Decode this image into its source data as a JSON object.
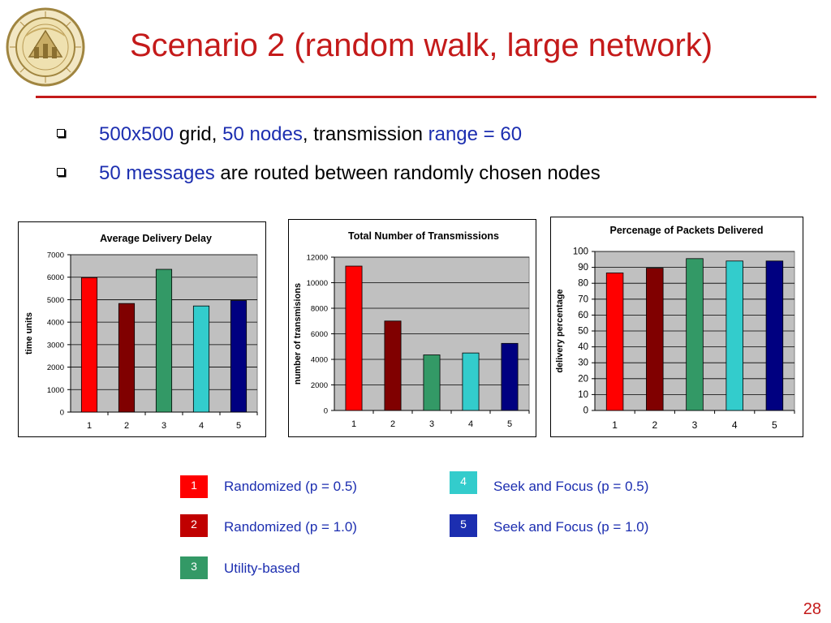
{
  "slide": {
    "title": "Scenario 2 (random walk, large network)",
    "page_number": "28",
    "bullets": [
      {
        "parts": [
          {
            "text": "500x500",
            "accent": true
          },
          {
            "text": " grid, ",
            "accent": false
          },
          {
            "text": "50 nodes",
            "accent": true
          },
          {
            "text": ", transmission ",
            "accent": false
          },
          {
            "text": "range = 60",
            "accent": true
          }
        ]
      },
      {
        "parts": [
          {
            "text": "50 messages",
            "accent": true
          },
          {
            "text": " are routed between randomly chosen nodes",
            "accent": false
          }
        ]
      }
    ]
  },
  "colors": {
    "title": "#c41a1a",
    "accent": "#1c2eb0",
    "plot_bg": "#c0c0c0",
    "series": [
      "#ff0000",
      "#800000",
      "#339966",
      "#33cccc",
      "#000080"
    ]
  },
  "legend": [
    {
      "number": "1",
      "label": "Randomized (p = 0.5)",
      "color": "#ff0000"
    },
    {
      "number": "2",
      "label": "Randomized (p = 1.0)",
      "color": "#c00000"
    },
    {
      "number": "3",
      "label": "Utility-based",
      "color": "#339966"
    },
    {
      "number": "4",
      "label": "Seek and Focus (p = 0.5)",
      "color": "#33cccc"
    },
    {
      "number": "5",
      "label": "Seek and Focus (p = 1.0)",
      "color": "#1c2eb0"
    }
  ],
  "chart_data": [
    {
      "type": "bar",
      "title": "Average Delivery Delay",
      "xlabel": "",
      "ylabel": "time units",
      "categories": [
        "1",
        "2",
        "3",
        "4",
        "5"
      ],
      "values": [
        5980,
        4830,
        6350,
        4720,
        4960
      ],
      "ylim": [
        0,
        7000
      ],
      "yticks": [
        0,
        1000,
        2000,
        3000,
        4000,
        5000,
        6000,
        7000
      ],
      "grid": true,
      "legend": "none"
    },
    {
      "type": "bar",
      "title": "Total Number of Transmissions",
      "xlabel": "",
      "ylabel": "number of transmisions",
      "categories": [
        "1",
        "2",
        "3",
        "4",
        "5"
      ],
      "values": [
        11300,
        7000,
        4350,
        4500,
        5250
      ],
      "ylim": [
        0,
        12000
      ],
      "yticks": [
        0,
        2000,
        4000,
        6000,
        8000,
        10000,
        12000
      ],
      "grid": true,
      "legend": "none"
    },
    {
      "type": "bar",
      "title": "Percenage of Packets Delivered",
      "xlabel": "",
      "ylabel": "delivery percentage",
      "categories": [
        "1",
        "2",
        "3",
        "4",
        "5"
      ],
      "values": [
        86.5,
        89.5,
        95.5,
        94,
        94
      ],
      "ylim": [
        0,
        100
      ],
      "yticks": [
        0,
        10,
        20,
        30,
        40,
        50,
        60,
        70,
        80,
        90,
        100
      ],
      "grid": true,
      "legend": "none"
    }
  ]
}
